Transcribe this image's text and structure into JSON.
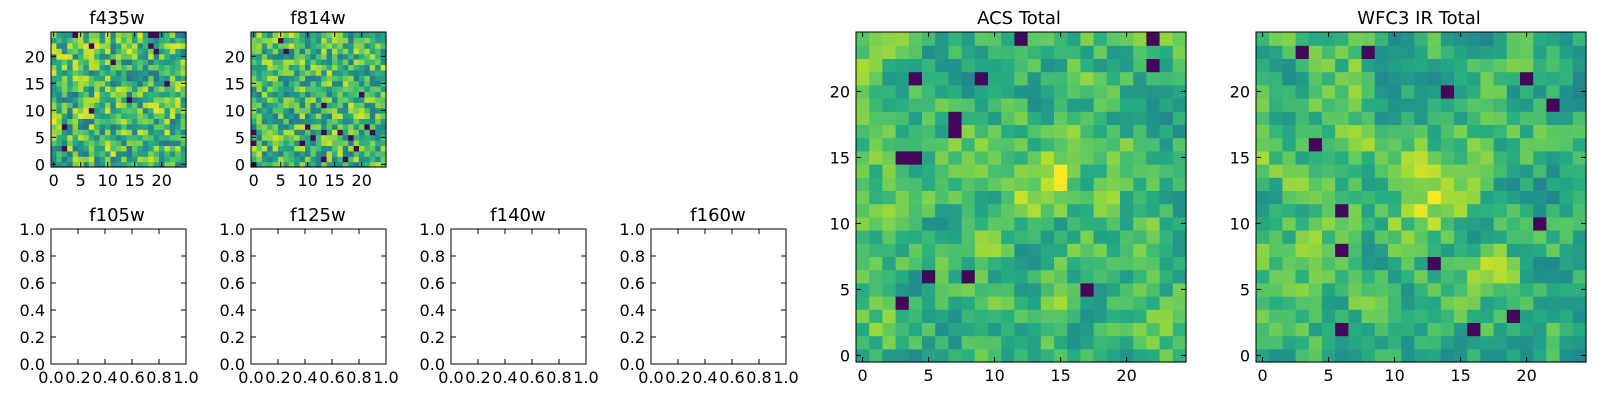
{
  "chart_data": [
    {
      "type": "heatmap",
      "title": "f435w",
      "xlim": [
        -0.5,
        24.5
      ],
      "ylim": [
        -0.5,
        24.5
      ],
      "x_ticks": [
        0,
        5,
        10,
        15,
        20
      ],
      "y_ticks": [
        0,
        5,
        10,
        15,
        20
      ],
      "size": [
        25,
        25
      ],
      "colormap": "viridis",
      "value_range": [
        0,
        1
      ],
      "seed": 11,
      "smoothness": 0.15
    },
    {
      "type": "heatmap",
      "title": "f814w",
      "xlim": [
        -0.5,
        24.5
      ],
      "ylim": [
        -0.5,
        24.5
      ],
      "x_ticks": [
        0,
        5,
        10,
        15,
        20
      ],
      "y_ticks": [
        0,
        5,
        10,
        15,
        20
      ],
      "size": [
        25,
        25
      ],
      "colormap": "viridis",
      "value_range": [
        0,
        1
      ],
      "seed": 23,
      "smoothness": 0.2
    },
    {
      "type": "heatmap",
      "title": "f105w",
      "empty": true,
      "xlim": [
        0,
        1
      ],
      "ylim": [
        0,
        1
      ],
      "x_ticks": [
        "0.0",
        "0.2",
        "0.4",
        "0.6",
        "0.8",
        "1.0"
      ],
      "y_ticks": [
        "0.0",
        "0.2",
        "0.4",
        "0.6",
        "0.8",
        "1.0"
      ]
    },
    {
      "type": "heatmap",
      "title": "f125w",
      "empty": true,
      "xlim": [
        0,
        1
      ],
      "ylim": [
        0,
        1
      ],
      "x_ticks": [
        "0.0",
        "0.2",
        "0.4",
        "0.6",
        "0.8",
        "1.0"
      ],
      "y_ticks": [
        "0.0",
        "0.2",
        "0.4",
        "0.6",
        "0.8",
        "1.0"
      ]
    },
    {
      "type": "heatmap",
      "title": "f140w",
      "empty": true,
      "xlim": [
        0,
        1
      ],
      "ylim": [
        0,
        1
      ],
      "x_ticks": [
        "0.0",
        "0.2",
        "0.4",
        "0.6",
        "0.8",
        "1.0"
      ],
      "y_ticks": [
        "0.0",
        "0.2",
        "0.4",
        "0.6",
        "0.8",
        "1.0"
      ]
    },
    {
      "type": "heatmap",
      "title": "f160w",
      "empty": true,
      "xlim": [
        0,
        1
      ],
      "ylim": [
        0,
        1
      ],
      "x_ticks": [
        "0.0",
        "0.2",
        "0.4",
        "0.6",
        "0.8",
        "1.0"
      ],
      "y_ticks": [
        "0.0",
        "0.2",
        "0.4",
        "0.6",
        "0.8",
        "1.0"
      ]
    },
    {
      "type": "heatmap",
      "title": "ACS Total",
      "xlim": [
        -0.5,
        24.5
      ],
      "ylim": [
        -0.5,
        24.5
      ],
      "x_ticks": [
        0,
        5,
        10,
        15,
        20
      ],
      "y_ticks": [
        0,
        5,
        10,
        15,
        20
      ],
      "size": [
        25,
        25
      ],
      "colormap": "viridis",
      "value_range": [
        0,
        1
      ],
      "seed": 37,
      "smoothness": 0.6,
      "peak": [
        14,
        13
      ]
    },
    {
      "type": "heatmap",
      "title": "WFC3 IR Total",
      "xlim": [
        -0.5,
        24.5
      ],
      "ylim": [
        -0.5,
        24.5
      ],
      "x_ticks": [
        0,
        5,
        10,
        15,
        20
      ],
      "y_ticks": [
        0,
        5,
        10,
        15,
        20
      ],
      "size": [
        25,
        25
      ],
      "colormap": "viridis",
      "value_range": [
        0,
        1
      ],
      "seed": 53,
      "smoothness": 0.6,
      "peak": [
        13,
        12
      ]
    }
  ]
}
